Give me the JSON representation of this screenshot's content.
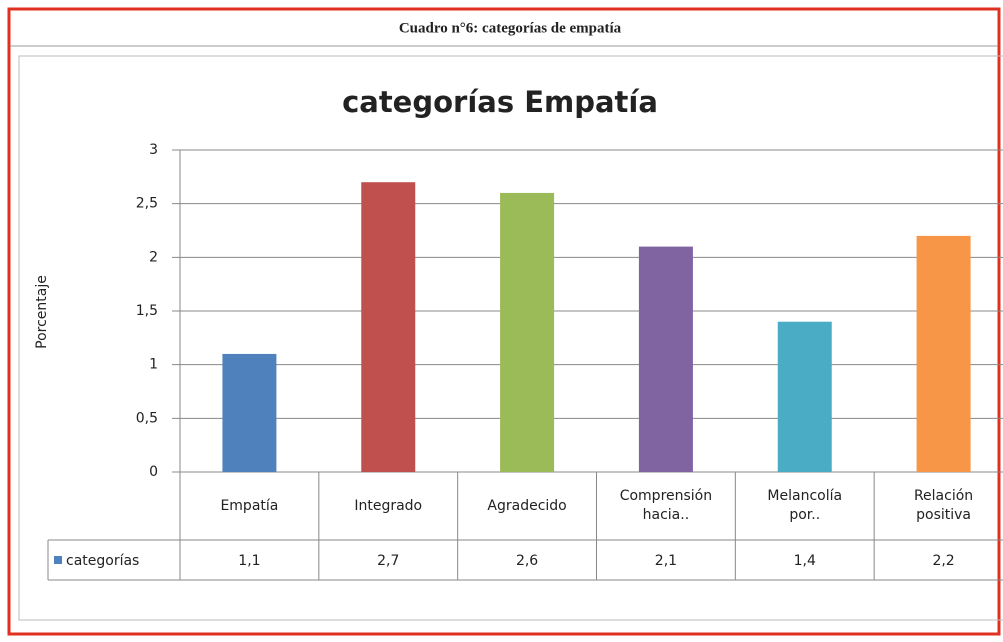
{
  "header": "Cuadro n°6: categorías de empatía",
  "chart_data": {
    "type": "bar",
    "title": "categorías Empatía",
    "y_label": "Porcentaje",
    "categories": [
      "Empatía",
      "Integrado",
      "Agradecido",
      "Comprensión hacia..",
      "Melancolía por..",
      "Relación positiva"
    ],
    "series": [
      {
        "name": "categorías",
        "color": "#4f81bd",
        "values": [
          1.1,
          2.7,
          2.6,
          2.1,
          1.4,
          2.2
        ],
        "value_labels": [
          "1,1",
          "2,7",
          "2,6",
          "2,1",
          "1,4",
          "2,2"
        ]
      }
    ],
    "bar_colors": [
      "#4f81bd",
      "#c0504d",
      "#9bbb59",
      "#8064a2",
      "#4bacc6",
      "#f79646"
    ],
    "ylim": [
      0,
      3
    ],
    "yticks": [
      0,
      {
        "value": 0.5,
        "label": "0,5"
      },
      1,
      {
        "value": 1.5,
        "label": "1,5"
      },
      2,
      {
        "value": 2.5,
        "label": "2,5"
      },
      3
    ],
    "grid": true
  }
}
